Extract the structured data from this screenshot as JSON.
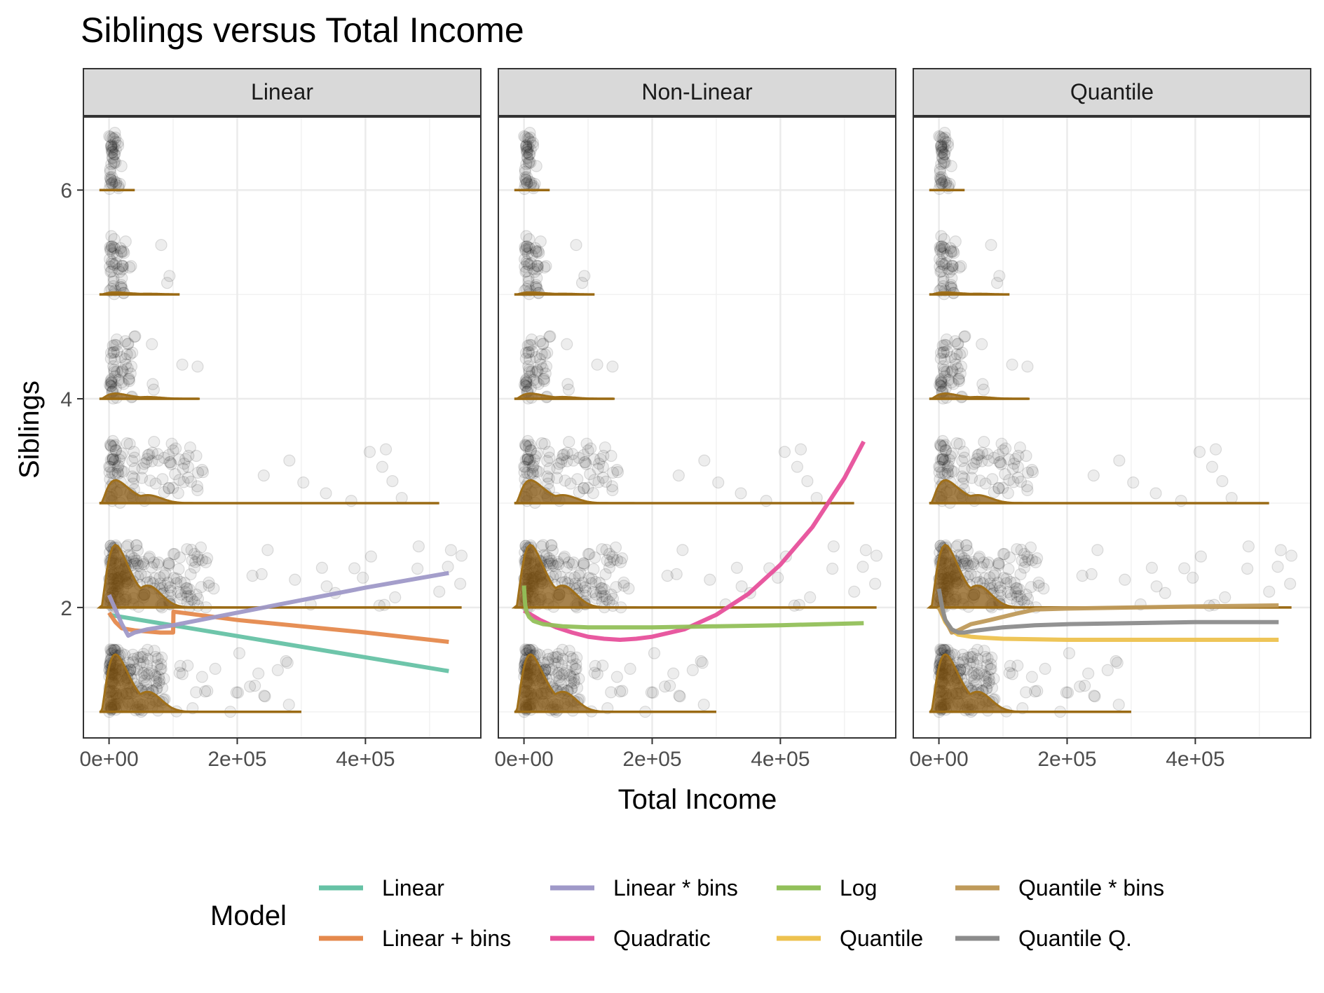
{
  "chart_data": {
    "type": "line",
    "title": "Siblings versus Total Income",
    "xlabel": "Total Income",
    "ylabel": "Siblings",
    "xlim": [
      -40000,
      580000
    ],
    "ylim": [
      0.75,
      6.7
    ],
    "x_ticks": [
      0,
      200000,
      400000
    ],
    "x_tick_labels": [
      "0e+00",
      "2e+05",
      "4e+05"
    ],
    "y_ticks": [
      2,
      4,
      6
    ],
    "y_tick_labels": [
      "2",
      "4",
      "6"
    ],
    "grid": true,
    "legend_position": "bottom",
    "legend_title": "Model",
    "panels": [
      {
        "name": "Linear",
        "series": [
          "Linear",
          "Linear + bins",
          "Linear * bins"
        ]
      },
      {
        "name": "Non-Linear",
        "series": [
          "Quadratic",
          "Log"
        ]
      },
      {
        "name": "Quantile",
        "series": [
          "Quantile",
          "Quantile * bins",
          "Quantile Q."
        ]
      }
    ],
    "series": [
      {
        "name": "Linear",
        "color": "#66c2a5",
        "x": [
          0,
          530000
        ],
        "y": [
          1.93,
          1.39
        ]
      },
      {
        "name": "Linear + bins",
        "color": "#e5894d",
        "x": [
          0,
          10000,
          20000,
          30000,
          40000,
          60000,
          80000,
          100000,
          100500,
          200000,
          300000,
          400000,
          530000
        ],
        "y": [
          1.95,
          1.86,
          1.8,
          1.79,
          1.78,
          1.77,
          1.76,
          1.76,
          1.96,
          1.88,
          1.82,
          1.76,
          1.67
        ]
      },
      {
        "name": "Linear * bins",
        "color": "#9f99c8",
        "x": [
          0,
          10000,
          20000,
          30000,
          40000,
          60000,
          100000,
          200000,
          300000,
          400000,
          530000
        ],
        "y": [
          2.12,
          1.98,
          1.84,
          1.73,
          1.76,
          1.79,
          1.83,
          1.95,
          2.07,
          2.19,
          2.33
        ]
      },
      {
        "name": "Quadratic",
        "color": "#e7509b",
        "x": [
          0,
          25000,
          50000,
          75000,
          100000,
          125000,
          150000,
          175000,
          200000,
          250000,
          300000,
          350000,
          400000,
          450000,
          500000,
          530000
        ],
        "y": [
          1.97,
          1.88,
          1.81,
          1.76,
          1.72,
          1.7,
          1.69,
          1.7,
          1.72,
          1.79,
          1.93,
          2.13,
          2.41,
          2.77,
          3.24,
          3.59
        ]
      },
      {
        "name": "Log",
        "color": "#92c05a",
        "x": [
          0,
          1000,
          2000,
          4000,
          8000,
          15000,
          30000,
          60000,
          100000,
          200000,
          300000,
          400000,
          530000
        ],
        "y": [
          2.21,
          2.1,
          2.02,
          1.96,
          1.91,
          1.87,
          1.84,
          1.82,
          1.81,
          1.81,
          1.82,
          1.83,
          1.85
        ]
      },
      {
        "name": "Quantile",
        "color": "#edc24f",
        "x": [
          0,
          5000,
          10000,
          20000,
          30000,
          40000,
          50000,
          70000,
          100000,
          200000,
          300000,
          400000,
          530000
        ],
        "y": [
          2.0,
          1.93,
          1.86,
          1.78,
          1.74,
          1.73,
          1.72,
          1.71,
          1.7,
          1.69,
          1.69,
          1.69,
          1.69
        ]
      },
      {
        "name": "Quantile * bins",
        "color": "#bf9a5a",
        "x": [
          0,
          10000,
          20000,
          30000,
          50000,
          80000,
          120000,
          150000,
          200000,
          300000,
          400000,
          530000
        ],
        "y": [
          2.0,
          1.88,
          1.76,
          1.78,
          1.84,
          1.88,
          1.94,
          1.98,
          1.99,
          2.0,
          2.01,
          2.02
        ]
      },
      {
        "name": "Quantile Q.",
        "color": "#8c8c8c",
        "x": [
          0,
          5000,
          10000,
          20000,
          30000,
          40000,
          60000,
          100000,
          150000,
          200000,
          300000,
          400000,
          530000
        ],
        "y": [
          2.18,
          2.0,
          1.88,
          1.79,
          1.76,
          1.76,
          1.78,
          1.81,
          1.83,
          1.84,
          1.85,
          1.86,
          1.86
        ]
      }
    ],
    "density_groups": [
      {
        "siblings": 1,
        "x_max": 300000,
        "peak_height": 0.55
      },
      {
        "siblings": 2,
        "x_max": 550000,
        "peak_height": 0.6
      },
      {
        "siblings": 3,
        "x_max": 515000,
        "peak_height": 0.22
      },
      {
        "siblings": 4,
        "x_max": 140000,
        "peak_height": 0.05
      },
      {
        "siblings": 5,
        "x_max": 110000,
        "peak_height": 0.02
      },
      {
        "siblings": 6,
        "x_max": 40000,
        "peak_height": 0.0
      }
    ]
  }
}
